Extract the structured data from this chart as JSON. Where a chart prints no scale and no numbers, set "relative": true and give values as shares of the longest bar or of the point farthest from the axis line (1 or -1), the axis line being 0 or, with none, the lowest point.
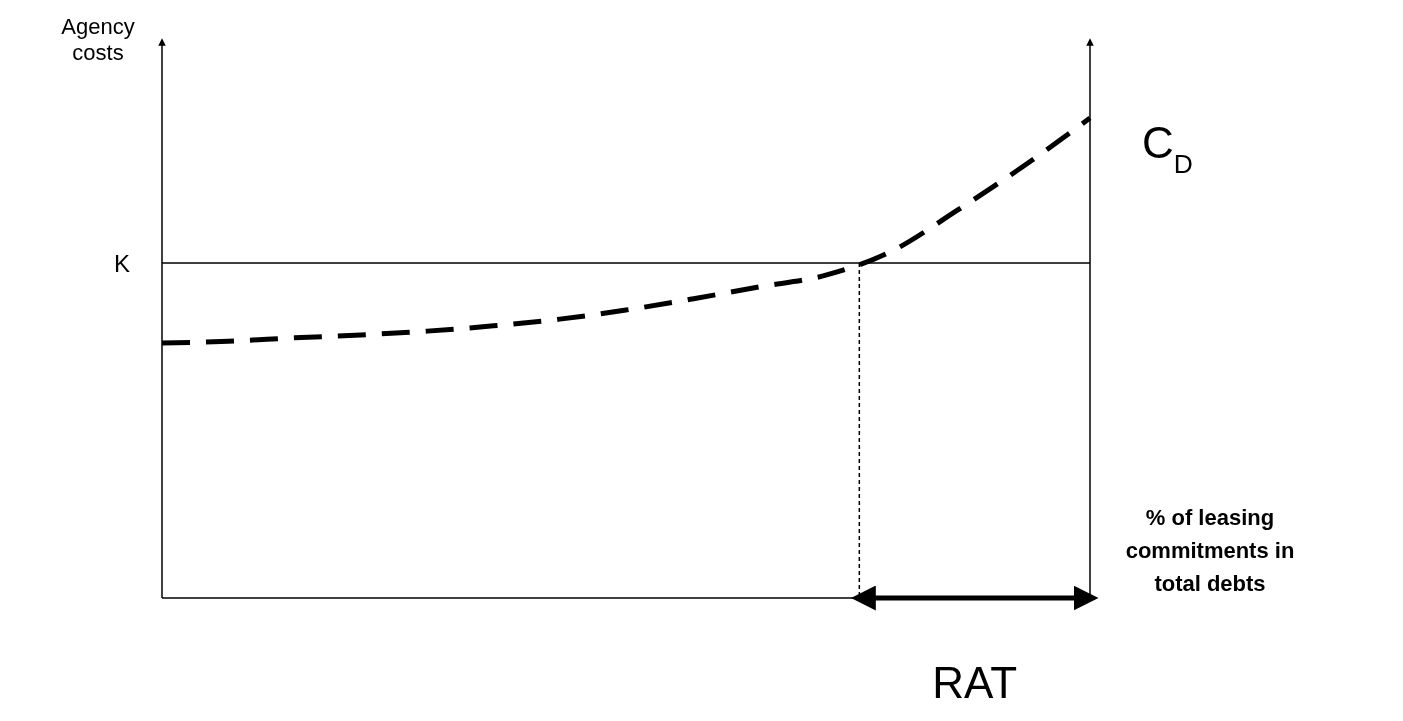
{
  "chart_data": {
    "type": "line",
    "relative": true,
    "ylabel": "Agency costs",
    "xlabel": "% of leasing commitments in total debts",
    "categories": [
      null,
      null,
      null,
      null,
      null,
      null,
      null,
      null,
      null,
      null,
      null,
      null,
      null,
      null,
      null
    ],
    "series": [
      {
        "name": "C$_{D}$",
        "color": "#000000",
        "line_style": "dashed",
        "values": [
          0.531,
          0.535,
          0.542,
          0.548,
          0.556,
          0.567,
          0.581,
          0.6,
          0.623,
          0.648,
          0.672,
          0.722,
          0.808,
          0.9,
          1
        ]
      }
    ],
    "ref_lines": [
      {
        "axis": "y",
        "value": 0.698,
        "label": "K",
        "color": "#000000",
        "line_style": "solid"
      }
    ],
    "annotations": [
      "RAT"
    ],
    "grid": false,
    "legend": false,
    "marker": "none"
  }
}
